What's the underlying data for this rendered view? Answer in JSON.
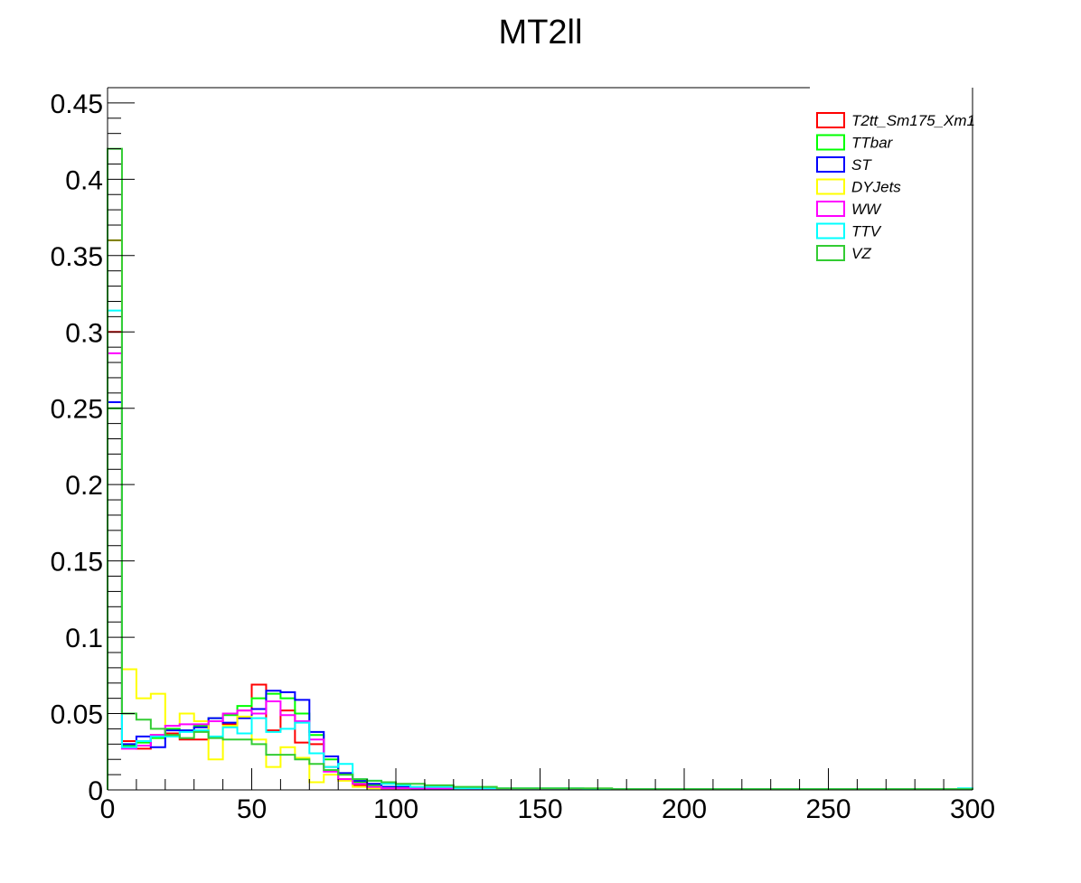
{
  "chart_data": {
    "type": "histogram-step",
    "title": "MT2ll",
    "xlabel": "",
    "ylabel": "",
    "xlim": [
      0,
      300
    ],
    "ylim": [
      0,
      0.46
    ],
    "bin_width": 5,
    "x_ticks": [
      "0",
      "50",
      "100",
      "150",
      "200",
      "250",
      "300"
    ],
    "y_ticks": [
      "0",
      "0.05",
      "0.1",
      "0.15",
      "0.2",
      "0.25",
      "0.3",
      "0.35",
      "0.4",
      "0.45"
    ],
    "x_tick_values": [
      0,
      50,
      100,
      150,
      200,
      250,
      300
    ],
    "y_tick_values": [
      0,
      0.05,
      0.1,
      0.15,
      0.2,
      0.25,
      0.3,
      0.35,
      0.4,
      0.45
    ],
    "grid": false,
    "legend_position": "top-right",
    "series": [
      {
        "name": "T2tt_Sm175_Xm1",
        "color": "#ff0000",
        "values": [
          0.3,
          0.032,
          0.027,
          0.036,
          0.037,
          0.033,
          0.033,
          0.045,
          0.043,
          0.052,
          0.069,
          0.039,
          0.052,
          0.031,
          0.03,
          0.015,
          0.007,
          0.003,
          0.002,
          0.001,
          0.001,
          0.001,
          0.001,
          0.001,
          0.001,
          0.001,
          0.001,
          0.0005,
          0.0005,
          0.0005,
          0.0005,
          0.0005,
          0.0005,
          0.0005,
          0.0005,
          0.0005,
          0.0005,
          0.0005,
          0.0005,
          0.0005,
          0.0005,
          0.0005,
          0.0005,
          0.0005,
          0.0005,
          0.0005,
          0.0005,
          0.0005,
          0.0005,
          0.0005,
          0.0005,
          0.0005,
          0.0005,
          0.0005,
          0.0005,
          0.0005,
          0.0005,
          0.0005,
          0.0005,
          0.0005
        ]
      },
      {
        "name": "TTbar",
        "color": "#00ff00",
        "values": [
          0.25,
          0.029,
          0.031,
          0.034,
          0.04,
          0.039,
          0.042,
          0.047,
          0.049,
          0.055,
          0.06,
          0.063,
          0.06,
          0.05,
          0.036,
          0.02,
          0.01,
          0.005,
          0.003,
          0.002,
          0.001,
          0.001,
          0.001,
          0.001,
          0.001,
          0.0005,
          0.0005,
          0.0005,
          0.0005,
          0.0005,
          0.0005,
          0.0005,
          0.0005,
          0.0005,
          0.0005,
          0.0005,
          0.0005,
          0.0005,
          0.0005,
          0.0005,
          0.0005,
          0.0005,
          0.0005,
          0.0005,
          0.0005,
          0.0005,
          0.0005,
          0.0005,
          0.0005,
          0.0005,
          0.0005,
          0.0005,
          0.0005,
          0.0005,
          0.0005,
          0.0005,
          0.0005,
          0.0005,
          0.0005,
          0.0005
        ]
      },
      {
        "name": "ST",
        "color": "#0000ff",
        "values": [
          0.254,
          0.03,
          0.035,
          0.028,
          0.039,
          0.039,
          0.041,
          0.047,
          0.044,
          0.047,
          0.053,
          0.065,
          0.064,
          0.059,
          0.038,
          0.022,
          0.011,
          0.006,
          0.004,
          0.002,
          0.002,
          0.001,
          0.001,
          0.001,
          0.001,
          0.001,
          0.0005,
          0.0005,
          0.0005,
          0.0005,
          0.0005,
          0.0005,
          0.0005,
          0.0005,
          0.0005,
          0.0005,
          0.0005,
          0.0005,
          0.0005,
          0.0005,
          0.0005,
          0.0005,
          0.0005,
          0.0005,
          0.0005,
          0.0005,
          0.0005,
          0.0005,
          0.0005,
          0.0005,
          0.0005,
          0.0005,
          0.0005,
          0.0005,
          0.0005,
          0.0005,
          0.0005,
          0.0005,
          0.0005,
          0.0005
        ]
      },
      {
        "name": "DYJets",
        "color": "#ffff00",
        "values": [
          0.36,
          0.079,
          0.06,
          0.063,
          0.042,
          0.05,
          0.045,
          0.02,
          0.042,
          0.048,
          0.033,
          0.015,
          0.028,
          0.021,
          0.005,
          0.01,
          0.006,
          0.002,
          0.001,
          0.001,
          0.001,
          0.002,
          0.002,
          0.002,
          0.001,
          0.001,
          0.001,
          0.0005,
          0.0005,
          0.0005,
          0.0005,
          0.0005,
          0.0005,
          0.0005,
          0.0005,
          0.0005,
          0.0005,
          0.0005,
          0.0005,
          0.0005,
          0.0005,
          0.0005,
          0.0005,
          0.0005,
          0.0005,
          0.0005,
          0.0005,
          0.0005,
          0.0005,
          0.0005,
          0.0005,
          0.0005,
          0.0005,
          0.0005,
          0.0005,
          0.0005,
          0.0005,
          0.0005,
          0.0005,
          0.0005
        ]
      },
      {
        "name": "WW",
        "color": "#ff00ff",
        "values": [
          0.286,
          0.027,
          0.029,
          0.036,
          0.042,
          0.043,
          0.043,
          0.045,
          0.05,
          0.052,
          0.05,
          0.058,
          0.049,
          0.045,
          0.033,
          0.012,
          0.007,
          0.004,
          0.002,
          0.001,
          0.001,
          0.001,
          0.001,
          0.001,
          0.001,
          0.0005,
          0.0005,
          0.0005,
          0.0005,
          0.0005,
          0.0005,
          0.0005,
          0.0005,
          0.0005,
          0.0005,
          0.0005,
          0.0005,
          0.0005,
          0.0005,
          0.0005,
          0.0005,
          0.0005,
          0.0005,
          0.0005,
          0.0005,
          0.0005,
          0.0005,
          0.0005,
          0.0005,
          0.0005,
          0.0005,
          0.0005,
          0.0005,
          0.0005,
          0.0005,
          0.0005,
          0.0005,
          0.0005,
          0.0005,
          0.0005
        ]
      },
      {
        "name": "TTV",
        "color": "#00ffff",
        "values": [
          0.314,
          0.028,
          0.032,
          0.035,
          0.035,
          0.038,
          0.039,
          0.035,
          0.041,
          0.037,
          0.047,
          0.038,
          0.04,
          0.044,
          0.024,
          0.015,
          0.017,
          0.007,
          0.006,
          0.004,
          0.003,
          0.002,
          0.002,
          0.002,
          0.001,
          0.001,
          0.001,
          0.001,
          0.001,
          0.001,
          0.001,
          0.001,
          0.001,
          0.0005,
          0.0005,
          0.0005,
          0.0005,
          0.0005,
          0.0005,
          0.0005,
          0.0005,
          0.0005,
          0.0005,
          0.0005,
          0.0005,
          0.0005,
          0.0005,
          0.0005,
          0.0005,
          0.0005,
          0.0005,
          0.0005,
          0.0005,
          0.0005,
          0.0005,
          0.0005,
          0.0005,
          0.0005,
          0.0005,
          0.001
        ]
      },
      {
        "name": "VZ",
        "color": "#33cc33",
        "values": [
          0.42,
          0.05,
          0.046,
          0.04,
          0.036,
          0.034,
          0.038,
          0.034,
          0.033,
          0.033,
          0.03,
          0.023,
          0.023,
          0.02,
          0.017,
          0.013,
          0.01,
          0.007,
          0.006,
          0.005,
          0.004,
          0.004,
          0.003,
          0.003,
          0.002,
          0.002,
          0.002,
          0.001,
          0.001,
          0.001,
          0.001,
          0.001,
          0.001,
          0.001,
          0.001,
          0.0005,
          0.0005,
          0.0005,
          0.0005,
          0.0005,
          0.0005,
          0.0005,
          0.0005,
          0.0005,
          0.0005,
          0.0005,
          0.0005,
          0.0005,
          0.0005,
          0.0005,
          0.0005,
          0.0005,
          0.0005,
          0.0005,
          0.0005,
          0.0005,
          0.0005,
          0.0005,
          0.0005,
          0.0005
        ]
      }
    ]
  }
}
